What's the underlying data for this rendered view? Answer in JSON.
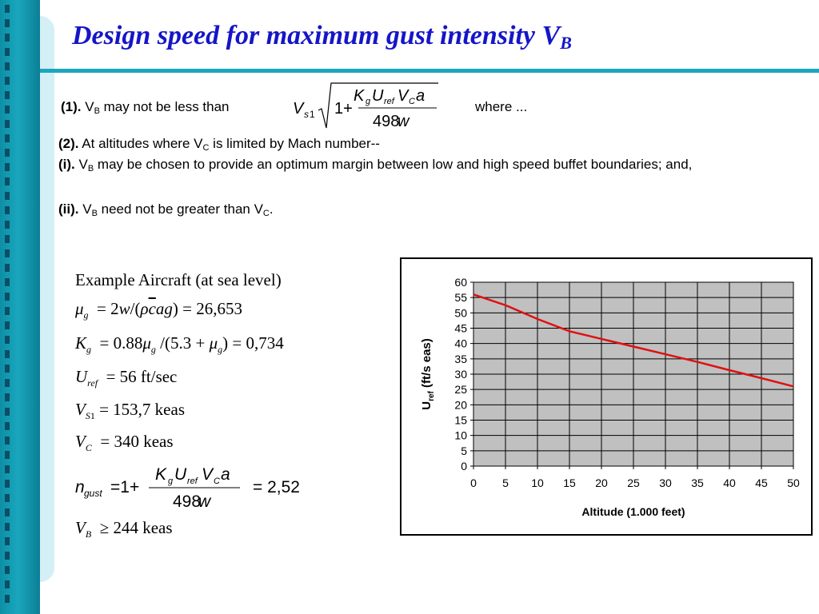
{
  "title": {
    "main": "Design speed for maximum gust intensity V",
    "sub": "B"
  },
  "rule1": {
    "num": "(1).",
    "pre": "V",
    "pre_sub": "B",
    "text": " may not be less than ",
    "where": "where ..."
  },
  "rule2": {
    "num": "(2).",
    "text": "At altitudes where V",
    "sub": "C",
    "tail": " is limited by Mach number--"
  },
  "rule_i": {
    "num": "(i).",
    "pre": "V",
    "pre_sub": "B",
    "text": " may be chosen to provide an optimum margin between low and high speed buffet boundaries; and,"
  },
  "rule_ii": {
    "num": "(ii).",
    "pre": "V",
    "pre_sub": "B",
    "text": " need not be greater than V",
    "sub": "C",
    "tail": "."
  },
  "example": {
    "heading": "Example Aircraft (at sea level)",
    "mu_value": "26,653",
    "kg_value": "0,734",
    "uref_value": "56 ft/sec",
    "vs1_value": "153,7 keas",
    "vc_value": "340 keas",
    "ngust_value": "2,52",
    "vb_value": "244 keas"
  },
  "chart_data": {
    "type": "line",
    "ylabel_main": "U",
    "ylabel_sub": "ref",
    "ylabel_tail": " (ft/s eas)",
    "xlabel": "Altitude (1.000 feet)",
    "xlim": [
      0,
      50
    ],
    "ylim": [
      0,
      60
    ],
    "x_ticks": [
      0,
      5,
      10,
      15,
      20,
      25,
      30,
      35,
      40,
      45,
      50
    ],
    "y_ticks": [
      0,
      5,
      10,
      15,
      20,
      25,
      30,
      35,
      40,
      45,
      50,
      55,
      60
    ],
    "grid": true,
    "plot_background": "#c0c0c0",
    "series": [
      {
        "color": "#e01010",
        "x": [
          0,
          5,
          10,
          15,
          20,
          25,
          30,
          35,
          40,
          45,
          50
        ],
        "y": [
          56,
          52.5,
          48,
          44,
          41.5,
          39,
          36.5,
          34,
          31.3,
          28.7,
          26
        ]
      }
    ]
  }
}
